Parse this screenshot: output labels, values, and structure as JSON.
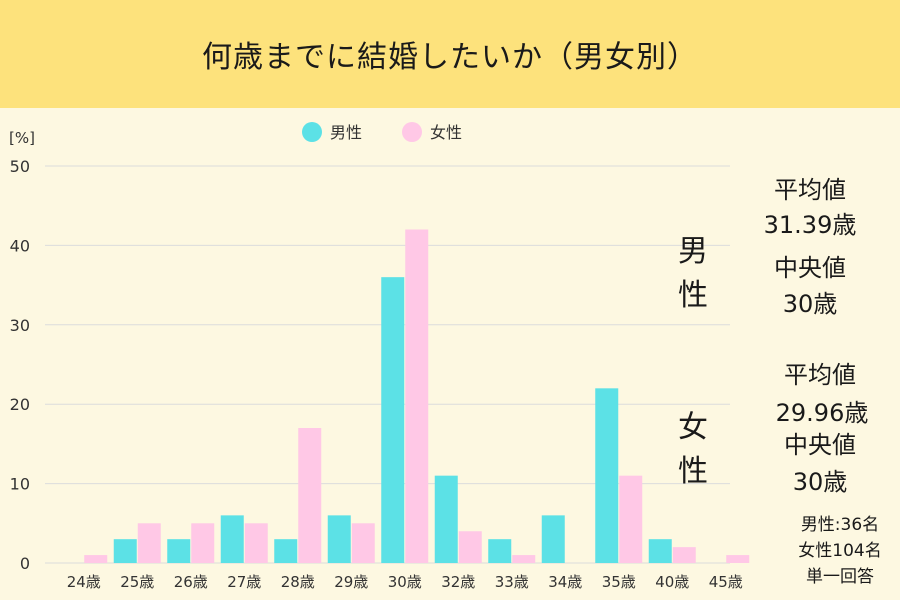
{
  "title": "何歳までに結婚したいか（男女別）",
  "colors": {
    "header_bg": "#fde27c",
    "page_bg": "#fdf8e1",
    "male": "#5ce1e6",
    "female": "#ffc8e6"
  },
  "stats": {
    "male": {
      "label": "男性",
      "mean_label": "平均値",
      "mean_value": "31.39歳",
      "median_label": "中央値",
      "median_value": "30歳"
    },
    "female": {
      "label": "女性",
      "mean_label": "平均値",
      "mean_value": "29.96歳",
      "median_label": "中央値",
      "median_value": "30歳"
    }
  },
  "notes": {
    "male_count": "男性:36名",
    "female_count": "女性104名",
    "answer_type": "単一回答"
  },
  "chart_data": {
    "type": "bar",
    "categories": [
      "24歳",
      "25歳",
      "26歳",
      "27歳",
      "28歳",
      "29歳",
      "30歳",
      "32歳",
      "33歳",
      "34歳",
      "35歳",
      "40歳",
      "45歳"
    ],
    "series": [
      {
        "name": "男性",
        "color": "#5ce1e6",
        "values": [
          0,
          3,
          3,
          6,
          3,
          6,
          36,
          11,
          3,
          6,
          22,
          3,
          0
        ]
      },
      {
        "name": "女性",
        "color": "#ffc8e6",
        "values": [
          1,
          5,
          5,
          5,
          17,
          5,
          42,
          4,
          1,
          0,
          11,
          2,
          1
        ]
      }
    ],
    "ylabel": "[%]",
    "ylim": [
      0,
      50
    ],
    "yticks": [
      0,
      10,
      20,
      30,
      40,
      50
    ],
    "grid": true,
    "legend": "top-center"
  }
}
